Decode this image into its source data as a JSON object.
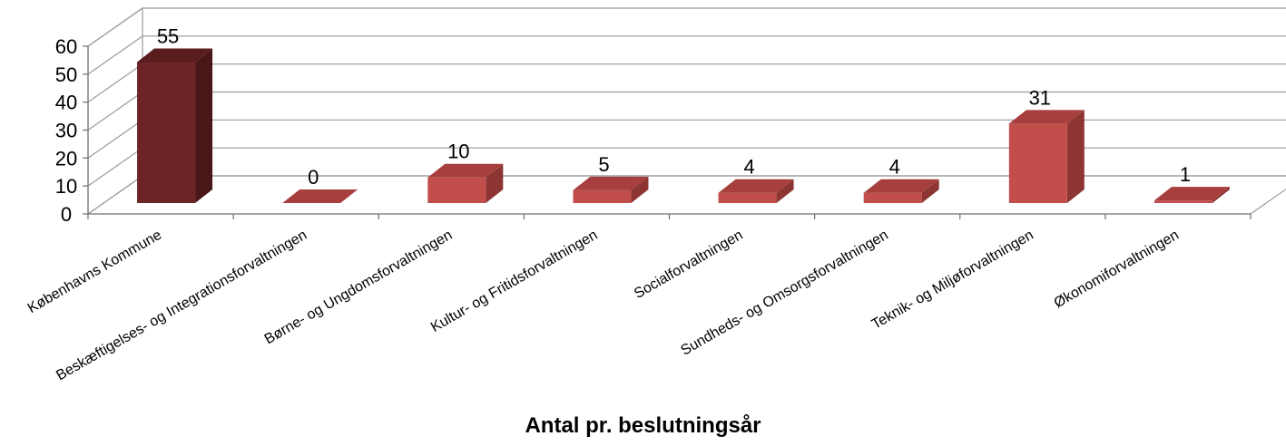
{
  "chart_data": {
    "type": "bar",
    "style": "3d-column",
    "title": "",
    "xlabel": "Antal pr. beslutningsår",
    "ylabel": "",
    "ylim": [
      0,
      60
    ],
    "yticks": [
      0,
      10,
      20,
      30,
      40,
      50,
      60
    ],
    "grid": true,
    "legend": "none",
    "categories": [
      "Københavns Kommune",
      "Beskæftigelses- og Integrationsforvaltningen",
      "Børne- og Ungdomsforvaltningen",
      "Kultur- og Fritidsforvaltningen",
      "Socialforvaltningen",
      "Sundheds- og Omsorgsforvaltningen",
      "Teknik- og Miljøforvaltningen",
      "Økonomiforvaltningen"
    ],
    "values": [
      55,
      0,
      10,
      5,
      4,
      4,
      31,
      1
    ],
    "data_labels": [
      "55",
      "0",
      "10",
      "5",
      "4",
      "4",
      "31",
      "1"
    ],
    "colors": {
      "highlight": "#722627",
      "default": "#c0504d",
      "grid": "#9a9a9a"
    }
  }
}
